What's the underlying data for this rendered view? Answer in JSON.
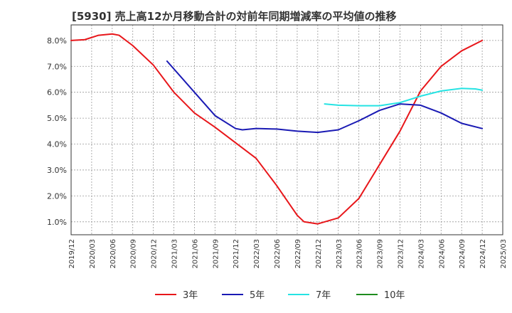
{
  "title": "[5930]  売上高12か月移動合計の対前年同期増減率の平均値の推移",
  "chart_data": {
    "type": "line",
    "title": "[5930]  売上高12か月移動合計の対前年同期増減率の平均値の推移",
    "xlabel": "",
    "ylabel": "",
    "grid": true,
    "legend_position": "bottom",
    "ylim": [
      0.5,
      8.6
    ],
    "y_ticks": [
      1.0,
      2.0,
      3.0,
      4.0,
      5.0,
      6.0,
      7.0,
      8.0
    ],
    "y_tick_labels": [
      "1.0%",
      "2.0%",
      "3.0%",
      "4.0%",
      "5.0%",
      "6.0%",
      "7.0%",
      "8.0%"
    ],
    "x_ticks": [
      "2019/12",
      "2020/03",
      "2020/06",
      "2020/09",
      "2020/12",
      "2021/03",
      "2021/06",
      "2021/09",
      "2021/12",
      "2022/03",
      "2022/06",
      "2022/09",
      "2022/12",
      "2023/03",
      "2023/06",
      "2023/09",
      "2023/12",
      "2024/03",
      "2024/06",
      "2024/09",
      "2024/12",
      "2025/03"
    ],
    "series": [
      {
        "name": "3年",
        "color": "#e8161a",
        "points": [
          [
            "2019/12",
            8.0
          ],
          [
            "2020/02",
            8.03
          ],
          [
            "2020/04",
            8.2
          ],
          [
            "2020/06",
            8.25
          ],
          [
            "2020/07",
            8.2
          ],
          [
            "2020/09",
            7.8
          ],
          [
            "2020/12",
            7.05
          ],
          [
            "2021/03",
            6.0
          ],
          [
            "2021/06",
            5.2
          ],
          [
            "2021/09",
            4.65
          ],
          [
            "2021/12",
            4.05
          ],
          [
            "2022/03",
            3.45
          ],
          [
            "2022/06",
            2.4
          ],
          [
            "2022/09",
            1.25
          ],
          [
            "2022/10",
            1.0
          ],
          [
            "2022/12",
            0.92
          ],
          [
            "2023/03",
            1.15
          ],
          [
            "2023/06",
            1.9
          ],
          [
            "2023/09",
            3.2
          ],
          [
            "2023/12",
            4.5
          ],
          [
            "2024/03",
            6.05
          ],
          [
            "2024/06",
            7.0
          ],
          [
            "2024/09",
            7.6
          ],
          [
            "2024/12",
            8.0
          ]
        ]
      },
      {
        "name": "5年",
        "color": "#1a1ab4",
        "points": [
          [
            "2021/02",
            7.2
          ],
          [
            "2021/06",
            6.0
          ],
          [
            "2021/09",
            5.1
          ],
          [
            "2021/12",
            4.6
          ],
          [
            "2022/01",
            4.55
          ],
          [
            "2022/03",
            4.6
          ],
          [
            "2022/06",
            4.58
          ],
          [
            "2022/09",
            4.5
          ],
          [
            "2022/12",
            4.45
          ],
          [
            "2023/03",
            4.55
          ],
          [
            "2023/06",
            4.9
          ],
          [
            "2023/09",
            5.3
          ],
          [
            "2023/12",
            5.55
          ],
          [
            "2024/03",
            5.5
          ],
          [
            "2024/06",
            5.2
          ],
          [
            "2024/09",
            4.8
          ],
          [
            "2024/12",
            4.6
          ]
        ]
      },
      {
        "name": "7年",
        "color": "#26e3e3",
        "points": [
          [
            "2023/01",
            5.55
          ],
          [
            "2023/03",
            5.5
          ],
          [
            "2023/06",
            5.48
          ],
          [
            "2023/09",
            5.48
          ],
          [
            "2023/12",
            5.6
          ],
          [
            "2024/03",
            5.85
          ],
          [
            "2024/06",
            6.05
          ],
          [
            "2024/09",
            6.15
          ],
          [
            "2024/11",
            6.13
          ],
          [
            "2024/12",
            6.08
          ]
        ]
      },
      {
        "name": "10年",
        "color": "#1e8c1e",
        "points": []
      }
    ]
  }
}
